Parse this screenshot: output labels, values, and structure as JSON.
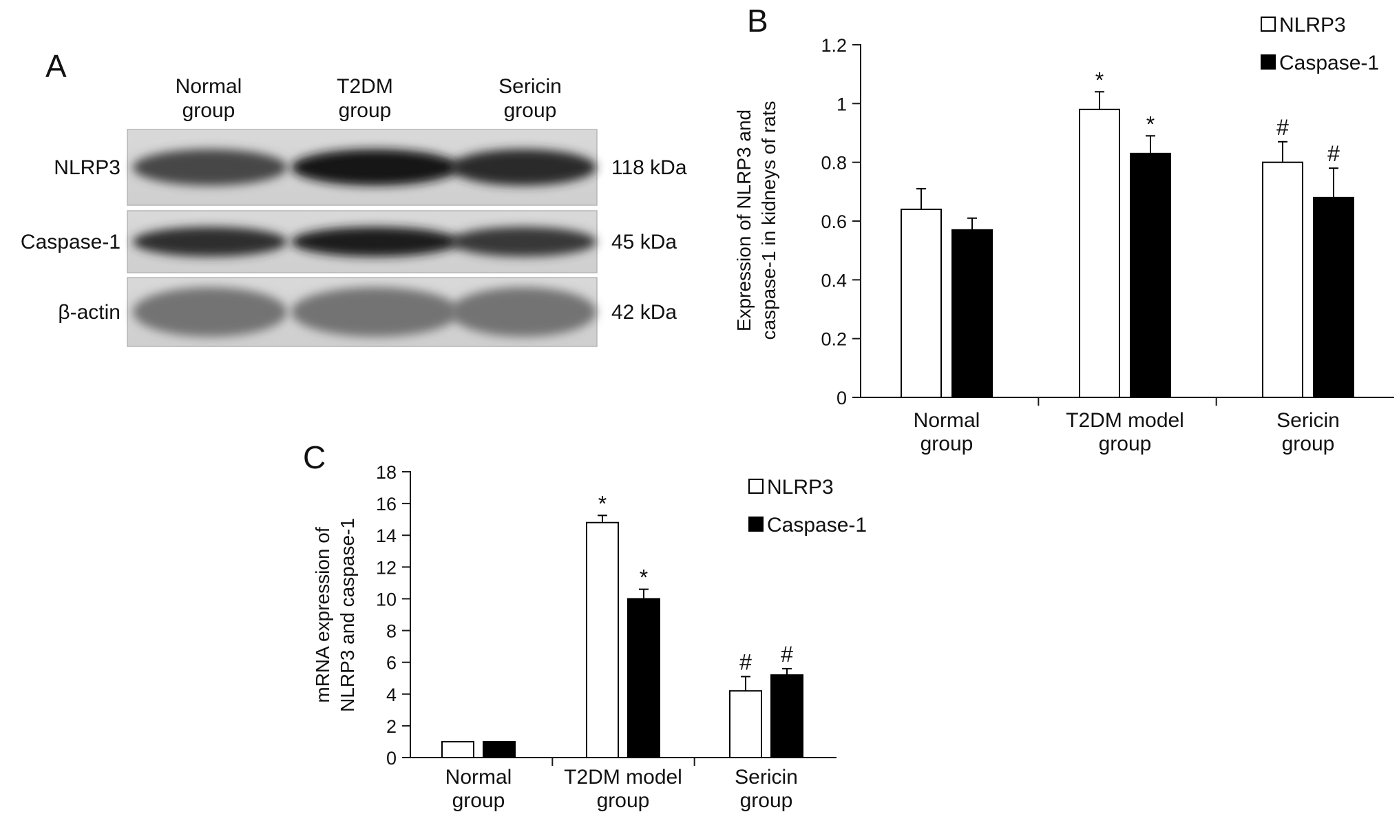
{
  "panels": {
    "A": {
      "letter": "A",
      "lanes": [
        "Normal\ngroup",
        "T2DM\ngroup",
        "Sericin\ngroup"
      ],
      "rows": [
        {
          "label": "NLRP3",
          "weight": "118 kDa",
          "intensity": [
            0.72,
            0.92,
            0.84
          ]
        },
        {
          "label": "Caspase-1",
          "weight": "45 kDa",
          "intensity": [
            0.82,
            0.88,
            0.78
          ]
        },
        {
          "label": "β-actin",
          "weight": "42 kDa",
          "intensity": [
            0.55,
            0.55,
            0.55
          ]
        }
      ]
    },
    "B": {
      "letter": "B"
    },
    "C": {
      "letter": "C"
    }
  },
  "chart_data": [
    {
      "panel": "B",
      "type": "bar",
      "categories": [
        "Normal\ngroup",
        "T2DM model\ngroup",
        "Sericin\ngroup"
      ],
      "series": [
        {
          "name": "NLRP3",
          "color": "#ffffff",
          "values": [
            0.64,
            0.98,
            0.8
          ],
          "errors": [
            0.07,
            0.06,
            0.07
          ],
          "markers": [
            "",
            "*",
            "#"
          ]
        },
        {
          "name": "Caspase-1",
          "color": "#000000",
          "values": [
            0.57,
            0.83,
            0.68
          ],
          "errors": [
            0.04,
            0.06,
            0.1
          ],
          "markers": [
            "",
            "*",
            "#"
          ]
        }
      ],
      "ylabel": "Expression of NLRP3 and\ncaspase-1 in kidneys of rats",
      "xlabel": "",
      "ylim": [
        0,
        1.2
      ],
      "yticks": [
        0,
        0.2,
        0.4,
        0.6,
        0.8,
        1,
        1.2
      ],
      "ytick_labels": [
        "0",
        "0.2",
        "0.4",
        "0.6",
        "0.8",
        "1",
        "1.2"
      ],
      "legend_position": "top-right",
      "grid": false
    },
    {
      "panel": "C",
      "type": "bar",
      "categories": [
        "Normal\ngroup",
        "T2DM model\ngroup",
        "Sericin\ngroup"
      ],
      "series": [
        {
          "name": "NLRP3",
          "color": "#ffffff",
          "values": [
            1.0,
            14.8,
            4.2
          ],
          "errors": [
            0,
            0.45,
            0.9
          ],
          "markers": [
            "",
            "*",
            "#"
          ]
        },
        {
          "name": "Caspase-1",
          "color": "#000000",
          "values": [
            1.0,
            10.0,
            5.2
          ],
          "errors": [
            0,
            0.6,
            0.4
          ],
          "markers": [
            "",
            "*",
            "#"
          ]
        }
      ],
      "ylabel": "mRNA expression of\nNLRP3 and caspase-1",
      "xlabel": "",
      "ylim": [
        0,
        18
      ],
      "yticks": [
        0,
        2,
        4,
        6,
        8,
        10,
        12,
        14,
        16,
        18
      ],
      "ytick_labels": [
        "0",
        "2",
        "4",
        "6",
        "8",
        "10",
        "12",
        "14",
        "16",
        "18"
      ],
      "legend_position": "top-right",
      "grid": false
    }
  ]
}
